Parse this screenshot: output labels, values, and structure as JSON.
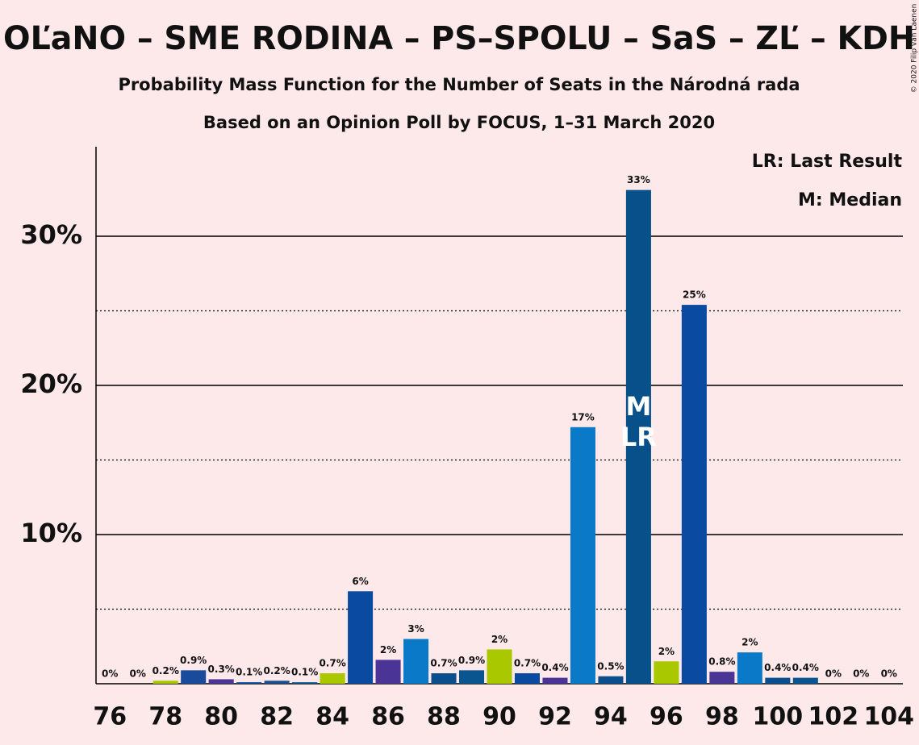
{
  "chart_data": {
    "type": "bar",
    "title": "OĽaNO – SME RODINA – PS–SPOLU – SaS – ZĽ – KDH",
    "subtitles": [
      "Probability Mass Function for the Number of Seats in the Národná rada",
      "Based on an Opinion Poll by FOCUS, 1–31 March 2020"
    ],
    "credit": "© 2020 Filip van Laenen",
    "x": [
      76,
      77,
      78,
      79,
      80,
      81,
      82,
      83,
      84,
      85,
      86,
      87,
      88,
      89,
      90,
      91,
      92,
      93,
      94,
      95,
      96,
      97,
      98,
      99,
      100,
      101,
      102,
      103,
      104
    ],
    "values": [
      0,
      0,
      0.2,
      0.9,
      0.3,
      0.1,
      0.2,
      0.1,
      0.7,
      6.2,
      1.6,
      3.0,
      0.7,
      0.9,
      2.3,
      0.7,
      0.4,
      17.2,
      0.5,
      33.1,
      1.5,
      25.4,
      0.8,
      2.1,
      0.4,
      0.4,
      0,
      0,
      0
    ],
    "value_labels": [
      "0%",
      "0%",
      "0.2%",
      "0.9%",
      "0.3%",
      "0.1%",
      "0.2%",
      "0.1%",
      "0.7%",
      "6%",
      "2%",
      "3%",
      "0.7%",
      "0.9%",
      "2%",
      "0.7%",
      "0.4%",
      "17%",
      "0.5%",
      "33%",
      "2%",
      "25%",
      "0.8%",
      "2%",
      "0.4%",
      "0.4%",
      "0%",
      "0%",
      "0%"
    ],
    "colors": [
      "#0a7ac8",
      "#0a4e8e",
      "#a9c800",
      "#1a4a9a",
      "#4a3596",
      "#0a4aa0",
      "#1a4e8e",
      "#0a5590",
      "#a9c800",
      "#0a4aa0",
      "#4a3596",
      "#0a7ac8",
      "#0a4e8e",
      "#0a5590",
      "#a9c800",
      "#0a4aa0",
      "#4a3596",
      "#0a7ac8",
      "#0a4e8e",
      "#08508a",
      "#a9c800",
      "#0a4aa0",
      "#4a3596",
      "#0a7ac8",
      "#0a4e8e",
      "#0a5590",
      "#a9c800",
      "#0a4aa0",
      "#4a3596"
    ],
    "xlim": [
      75.5,
      104.5
    ],
    "xticks": [
      76,
      78,
      80,
      82,
      84,
      86,
      88,
      90,
      92,
      94,
      96,
      98,
      100,
      102,
      104
    ],
    "ylim": [
      0,
      36
    ],
    "yticks": [
      {
        "value": 10,
        "label": "10%"
      },
      {
        "value": 20,
        "label": "20%"
      },
      {
        "value": 30,
        "label": "30%"
      }
    ],
    "minor_grid": [
      5,
      15,
      25
    ],
    "markers": [
      {
        "label": "M",
        "x": 95
      },
      {
        "label": "LR",
        "x": 95
      }
    ],
    "legend": [
      "LR: Last Result",
      "M: Median"
    ]
  }
}
